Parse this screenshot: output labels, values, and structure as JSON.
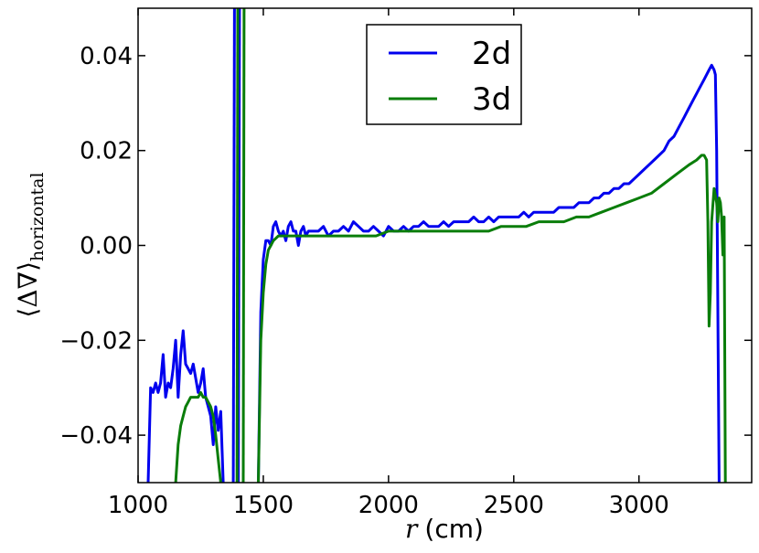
{
  "chart_data": {
    "type": "line",
    "xlabel_var": "r",
    "xlabel_unit": "(cm)",
    "ylabel_main": "⟨Δ∇⟩",
    "ylabel_sub": "horizontal",
    "xlim": [
      1000,
      3450
    ],
    "ylim": [
      -0.05,
      0.05
    ],
    "xticks": [
      1000,
      1500,
      2000,
      2500,
      3000
    ],
    "xtick_labels": [
      "1000",
      "1500",
      "2000",
      "2500",
      "3000"
    ],
    "yticks": [
      -0.04,
      -0.02,
      0.0,
      0.02,
      0.04
    ],
    "ytick_labels": [
      "−0.04",
      "−0.02",
      "0.00",
      "0.02",
      "0.04"
    ],
    "grid": false,
    "legend_position": "top-center",
    "colors": {
      "2d": "#0000ee",
      "3d": "#0a7d0a"
    },
    "series": [
      {
        "name": "2d",
        "segments": [
          [
            [
              1040,
              -0.05
            ],
            [
              1050,
              -0.03
            ],
            [
              1060,
              -0.031
            ],
            [
              1070,
              -0.029
            ],
            [
              1080,
              -0.031
            ],
            [
              1090,
              -0.029
            ],
            [
              1100,
              -0.023
            ],
            [
              1110,
              -0.032
            ],
            [
              1120,
              -0.029
            ],
            [
              1130,
              -0.03
            ],
            [
              1140,
              -0.026
            ],
            [
              1150,
              -0.02
            ],
            [
              1160,
              -0.032
            ],
            [
              1170,
              -0.023
            ],
            [
              1180,
              -0.018
            ],
            [
              1190,
              -0.025
            ],
            [
              1200,
              -0.026
            ],
            [
              1210,
              -0.027
            ],
            [
              1220,
              -0.025
            ],
            [
              1230,
              -0.028
            ],
            [
              1240,
              -0.031
            ],
            [
              1250,
              -0.029
            ],
            [
              1260,
              -0.026
            ],
            [
              1270,
              -0.032
            ],
            [
              1280,
              -0.034
            ],
            [
              1290,
              -0.036
            ],
            [
              1300,
              -0.042
            ],
            [
              1310,
              -0.034
            ],
            [
              1320,
              -0.039
            ],
            [
              1330,
              -0.035
            ],
            [
              1340,
              -0.05
            ]
          ],
          [
            [
              1380,
              -0.05
            ],
            [
              1385,
              0.05
            ]
          ],
          [
            [
              1400,
              -0.05
            ],
            [
              1405,
              0.05
            ]
          ],
          [
            [
              1480,
              -0.05
            ],
            [
              1490,
              -0.014
            ],
            [
              1500,
              -0.003
            ],
            [
              1510,
              0.001
            ],
            [
              1520,
              0.001
            ],
            [
              1530,
              0.0
            ],
            [
              1540,
              0.004
            ],
            [
              1550,
              0.005
            ],
            [
              1560,
              0.003
            ],
            [
              1570,
              0.002
            ],
            [
              1580,
              0.003
            ],
            [
              1590,
              0.001
            ],
            [
              1600,
              0.004
            ],
            [
              1610,
              0.005
            ],
            [
              1620,
              0.003
            ],
            [
              1630,
              0.003
            ],
            [
              1640,
              0.0
            ],
            [
              1650,
              0.003
            ],
            [
              1660,
              0.004
            ],
            [
              1670,
              0.002
            ],
            [
              1680,
              0.003
            ],
            [
              1700,
              0.003
            ],
            [
              1720,
              0.003
            ],
            [
              1740,
              0.004
            ],
            [
              1760,
              0.002
            ],
            [
              1780,
              0.003
            ],
            [
              1800,
              0.003
            ],
            [
              1820,
              0.004
            ],
            [
              1840,
              0.003
            ],
            [
              1860,
              0.005
            ],
            [
              1880,
              0.004
            ],
            [
              1900,
              0.003
            ],
            [
              1920,
              0.003
            ],
            [
              1940,
              0.004
            ],
            [
              1960,
              0.003
            ],
            [
              1980,
              0.002
            ],
            [
              2000,
              0.004
            ],
            [
              2020,
              0.003
            ],
            [
              2040,
              0.003
            ],
            [
              2060,
              0.004
            ],
            [
              2080,
              0.003
            ],
            [
              2100,
              0.004
            ],
            [
              2120,
              0.004
            ],
            [
              2140,
              0.005
            ],
            [
              2160,
              0.004
            ],
            [
              2180,
              0.004
            ],
            [
              2200,
              0.004
            ],
            [
              2220,
              0.005
            ],
            [
              2240,
              0.004
            ],
            [
              2260,
              0.005
            ],
            [
              2280,
              0.005
            ],
            [
              2300,
              0.005
            ],
            [
              2320,
              0.005
            ],
            [
              2340,
              0.006
            ],
            [
              2360,
              0.005
            ],
            [
              2380,
              0.005
            ],
            [
              2400,
              0.006
            ],
            [
              2420,
              0.005
            ],
            [
              2440,
              0.006
            ],
            [
              2460,
              0.006
            ],
            [
              2480,
              0.006
            ],
            [
              2500,
              0.006
            ],
            [
              2520,
              0.006
            ],
            [
              2540,
              0.007
            ],
            [
              2560,
              0.006
            ],
            [
              2580,
              0.007
            ],
            [
              2600,
              0.007
            ],
            [
              2620,
              0.007
            ],
            [
              2640,
              0.007
            ],
            [
              2660,
              0.007
            ],
            [
              2680,
              0.008
            ],
            [
              2700,
              0.008
            ],
            [
              2720,
              0.008
            ],
            [
              2740,
              0.008
            ],
            [
              2760,
              0.009
            ],
            [
              2780,
              0.009
            ],
            [
              2800,
              0.009
            ],
            [
              2820,
              0.01
            ],
            [
              2840,
              0.01
            ],
            [
              2860,
              0.011
            ],
            [
              2880,
              0.011
            ],
            [
              2900,
              0.012
            ],
            [
              2920,
              0.012
            ],
            [
              2940,
              0.013
            ],
            [
              2960,
              0.013
            ],
            [
              2980,
              0.014
            ],
            [
              3000,
              0.015
            ],
            [
              3020,
              0.016
            ],
            [
              3040,
              0.017
            ],
            [
              3060,
              0.018
            ],
            [
              3080,
              0.019
            ],
            [
              3100,
              0.02
            ],
            [
              3120,
              0.022
            ],
            [
              3140,
              0.023
            ],
            [
              3160,
              0.025
            ],
            [
              3180,
              0.027
            ],
            [
              3200,
              0.029
            ],
            [
              3220,
              0.031
            ],
            [
              3240,
              0.033
            ],
            [
              3260,
              0.035
            ],
            [
              3280,
              0.037
            ],
            [
              3290,
              0.038
            ],
            [
              3300,
              0.037
            ],
            [
              3305,
              0.036
            ],
            [
              3310,
              0.02
            ],
            [
              3320,
              -0.05
            ]
          ],
          [
            [
              1040,
              0.05
            ],
            [
              1040,
              0.05
            ]
          ]
        ]
      },
      {
        "name": "3d",
        "segments": [
          [
            [
              1150,
              -0.05
            ],
            [
              1160,
              -0.042
            ],
            [
              1170,
              -0.038
            ],
            [
              1180,
              -0.036
            ],
            [
              1190,
              -0.034
            ],
            [
              1200,
              -0.033
            ],
            [
              1210,
              -0.032
            ],
            [
              1220,
              -0.032
            ],
            [
              1230,
              -0.032
            ],
            [
              1240,
              -0.032
            ],
            [
              1250,
              -0.031
            ],
            [
              1260,
              -0.032
            ],
            [
              1270,
              -0.032
            ],
            [
              1280,
              -0.033
            ],
            [
              1290,
              -0.034
            ],
            [
              1300,
              -0.036
            ],
            [
              1310,
              -0.04
            ],
            [
              1320,
              -0.045
            ],
            [
              1330,
              -0.05
            ]
          ],
          [
            [
              1395,
              -0.05
            ],
            [
              1398,
              0.05
            ]
          ],
          [
            [
              1420,
              -0.05
            ],
            [
              1423,
              0.05
            ]
          ],
          [
            [
              1480,
              -0.05
            ],
            [
              1490,
              -0.02
            ],
            [
              1500,
              -0.01
            ],
            [
              1510,
              -0.004
            ],
            [
              1520,
              -0.001
            ],
            [
              1530,
              0.0
            ],
            [
              1540,
              0.001
            ],
            [
              1560,
              0.002
            ],
            [
              1580,
              0.002
            ],
            [
              1600,
              0.002
            ],
            [
              1650,
              0.002
            ],
            [
              1700,
              0.002
            ],
            [
              1750,
              0.002
            ],
            [
              1800,
              0.002
            ],
            [
              1850,
              0.002
            ],
            [
              1900,
              0.002
            ],
            [
              1950,
              0.002
            ],
            [
              2000,
              0.003
            ],
            [
              2050,
              0.003
            ],
            [
              2100,
              0.003
            ],
            [
              2150,
              0.003
            ],
            [
              2200,
              0.003
            ],
            [
              2250,
              0.003
            ],
            [
              2300,
              0.003
            ],
            [
              2350,
              0.003
            ],
            [
              2400,
              0.003
            ],
            [
              2450,
              0.004
            ],
            [
              2500,
              0.004
            ],
            [
              2550,
              0.004
            ],
            [
              2600,
              0.005
            ],
            [
              2650,
              0.005
            ],
            [
              2700,
              0.005
            ],
            [
              2750,
              0.006
            ],
            [
              2800,
              0.006
            ],
            [
              2850,
              0.007
            ],
            [
              2900,
              0.008
            ],
            [
              2950,
              0.009
            ],
            [
              3000,
              0.01
            ],
            [
              3050,
              0.011
            ],
            [
              3100,
              0.013
            ],
            [
              3150,
              0.015
            ],
            [
              3200,
              0.017
            ],
            [
              3230,
              0.018
            ],
            [
              3250,
              0.019
            ],
            [
              3260,
              0.019
            ],
            [
              3270,
              0.018
            ],
            [
              3275,
              0.005
            ],
            [
              3280,
              -0.017
            ],
            [
              3285,
              -0.01
            ],
            [
              3290,
              0.005
            ],
            [
              3300,
              0.012
            ],
            [
              3310,
              0.009
            ],
            [
              3315,
              0.005
            ],
            [
              3320,
              0.01
            ],
            [
              3325,
              0.009
            ],
            [
              3330,
              0.006
            ],
            [
              3335,
              -0.002
            ],
            [
              3340,
              0.006
            ],
            [
              3345,
              -0.05
            ]
          ]
        ]
      }
    ]
  }
}
